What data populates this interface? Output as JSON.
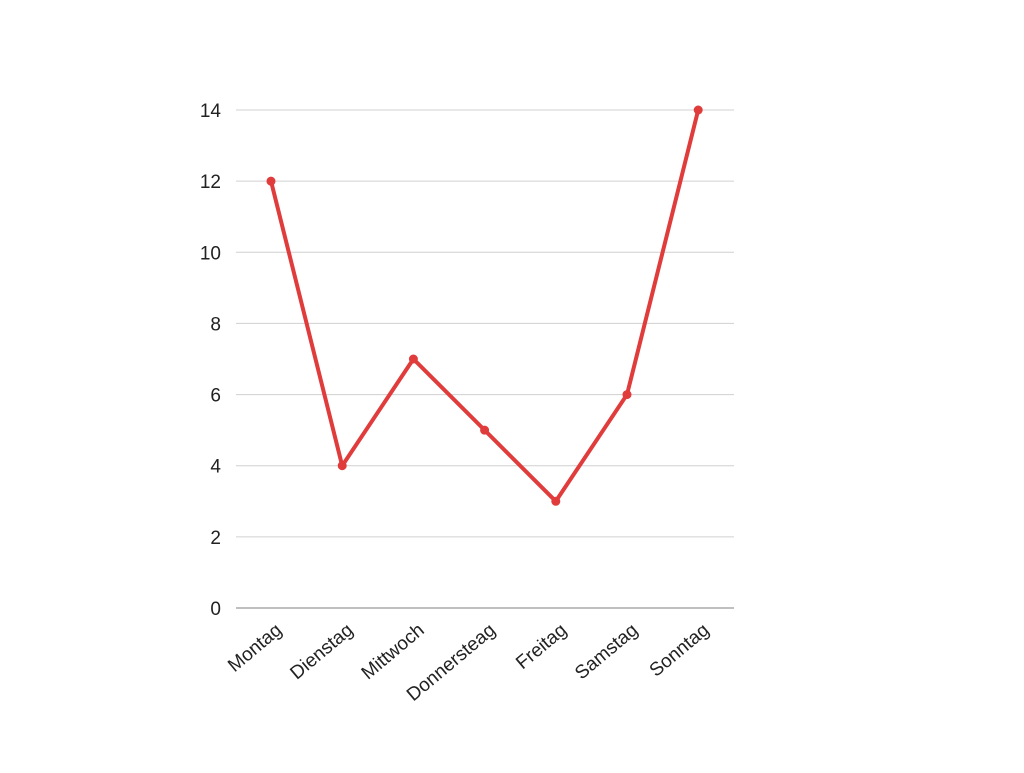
{
  "chart_data": {
    "type": "line",
    "categories": [
      "Montag",
      "Dienstag",
      "Mittwoch",
      "Donnersteag",
      "Freitag",
      "Samstag",
      "Sonntag"
    ],
    "series": [
      {
        "values": [
          12,
          4,
          7,
          5,
          3,
          6,
          14
        ]
      }
    ],
    "ylim": [
      0,
      14
    ],
    "yticks": [
      0,
      2,
      4,
      6,
      8,
      10,
      12,
      14
    ],
    "grid": true,
    "legend": "none",
    "line_color": "#e03c3c",
    "grid_color": "#d0d0d0",
    "axis_color": "#999999"
  }
}
